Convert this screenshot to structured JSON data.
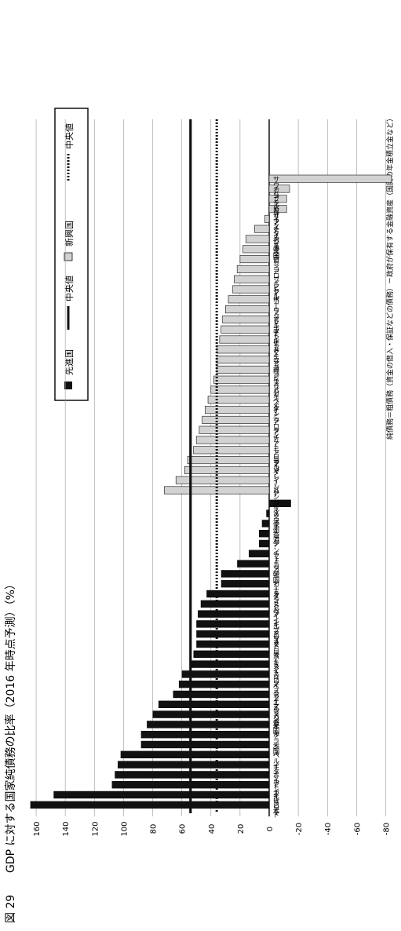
{
  "figure": {
    "number": "図 29",
    "title": "GDP に対する国家純債務の比率（2016 年時点予測）（%）",
    "note": "純債務＝粗債務（資金の借入・保証などの債務）－政府が保有する金融資産（国民の年金積立金など）"
  },
  "legend": {
    "advanced": "先進国",
    "median_solid": "中央値",
    "emerging": "新興国",
    "median_dotted": "中央値"
  },
  "colors": {
    "advanced": "#111111",
    "emerging": "#d2d2d2",
    "median": "#111111",
    "grid": "#999999"
  },
  "chart_data": {
    "type": "bar",
    "orientation": "horizontal-rotated",
    "ylim": [
      -80,
      160
    ],
    "ticks": [
      160,
      140,
      120,
      100,
      80,
      60,
      40,
      20,
      0,
      -20,
      -40,
      -60,
      -80
    ],
    "grid": true,
    "medians": {
      "advanced": 54,
      "emerging": 36
    },
    "series": [
      {
        "name": "先進国",
        "categories": [
          "日本",
          "ギリシャ",
          "アイルランド",
          "ポルトガル",
          "イタリア",
          "ベルギー",
          "米国",
          "フランス",
          "英国",
          "スペイン",
          "シンガポール",
          "アイスランド",
          "イスラエル",
          "スロベニア",
          "ドイツ",
          "オーストリア",
          "スロバキア",
          "エストニア",
          "キプロス",
          "アイルランド",
          "スペイン",
          "オランダ",
          "カナダ",
          "韓国",
          "ニュージーランド",
          "チェコ",
          "デンマーク",
          "香港",
          "豪州",
          "スウェーデン",
          "ノルウェー"
        ],
        "values": [
          164,
          148,
          108,
          106,
          104,
          102,
          88,
          88,
          84,
          80,
          76,
          66,
          62,
          60,
          54,
          52,
          50,
          50,
          50,
          49,
          47,
          43,
          33,
          33,
          22,
          14,
          7,
          7,
          5,
          2,
          -15
        ]
      },
      {
        "name": "新興国",
        "categories": [
          "ハンガリー",
          "インド",
          "マレーシア",
          "ヨルダン",
          "モロッコ",
          "リトアニア",
          "タイ",
          "クロアチア",
          "ケニア",
          "ペルー",
          "バキスタン",
          "イラン",
          "南アフリカ",
          "フィリピン",
          "メキシコ",
          "ルーマニア",
          "ラトビア",
          "アルゼンチン",
          "ウクライナ",
          "ポーランド",
          "トルコ",
          "ブラジル",
          "コロンビア",
          "ロシア",
          "中国",
          "ベネズエラ",
          "ナイジェリア",
          "インドネシア",
          "カザフスタン",
          "ブルガリア",
          "チリ",
          "サウジアラビア"
        ],
        "values": [
          72,
          64,
          58,
          56,
          52,
          50,
          48,
          46,
          44,
          42,
          40,
          38,
          36,
          36,
          36,
          34,
          33,
          32,
          30,
          28,
          25,
          24,
          22,
          20,
          18,
          16,
          10,
          3,
          -12,
          -12,
          -14,
          -84
        ]
      }
    ]
  }
}
